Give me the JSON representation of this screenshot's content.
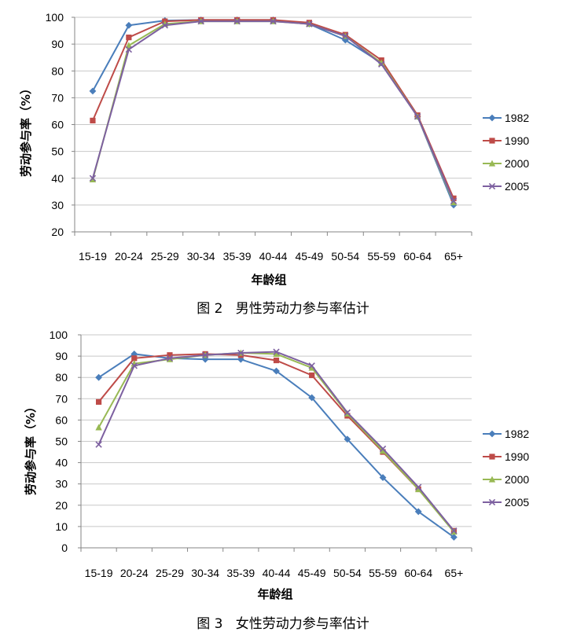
{
  "colors": {
    "1982": "#4a7ebb",
    "1990": "#be4b48",
    "2000": "#98b954",
    "2005": "#7d60a0",
    "grid": "#c8c8c8",
    "axis": "#868686"
  },
  "chart_data": [
    {
      "type": "line",
      "caption": "图 2   男性劳动力参与率估计",
      "xlabel": "年龄组",
      "ylabel": "劳动参与率（%）",
      "categories": [
        "15-19",
        "20-24",
        "25-29",
        "30-34",
        "35-39",
        "40-44",
        "45-49",
        "50-54",
        "55-59",
        "60-64",
        "65+"
      ],
      "ylim": [
        20,
        100
      ],
      "yticks": [
        20,
        30,
        40,
        50,
        60,
        70,
        80,
        90,
        100
      ],
      "legend": "right",
      "grid": true,
      "series": [
        {
          "name": "1982",
          "marker": "diamond",
          "values": [
            72.5,
            97,
            98.8,
            99,
            99,
            99,
            97.5,
            91.5,
            83,
            63,
            30
          ]
        },
        {
          "name": "1990",
          "marker": "square",
          "values": [
            61.5,
            92.5,
            98.5,
            99,
            99,
            99,
            98,
            93.5,
            84,
            63.5,
            32.5
          ]
        },
        {
          "name": "2000",
          "marker": "triangle",
          "values": [
            39.5,
            89.5,
            97.5,
            98.5,
            98.5,
            98.5,
            97.5,
            93,
            83,
            63,
            31
          ]
        },
        {
          "name": "2005",
          "marker": "x",
          "values": [
            40,
            88,
            97,
            98.5,
            98.5,
            98.5,
            97.5,
            93,
            82.5,
            63,
            31.5
          ]
        }
      ]
    },
    {
      "type": "line",
      "caption": "图 3   女性劳动力参与率估计",
      "xlabel": "年龄组",
      "ylabel": "劳动参与率（%）",
      "categories": [
        "15-19",
        "20-24",
        "25-29",
        "30-34",
        "35-39",
        "40-44",
        "45-49",
        "50-54",
        "55-59",
        "60-64",
        "65+"
      ],
      "ylim": [
        0,
        100
      ],
      "yticks": [
        0,
        10,
        20,
        30,
        40,
        50,
        60,
        70,
        80,
        90,
        100
      ],
      "legend": "right",
      "grid": true,
      "series": [
        {
          "name": "1982",
          "marker": "diamond",
          "values": [
            80,
            91,
            89,
            88.5,
            88.5,
            83,
            70.5,
            51,
            33,
            17,
            5
          ]
        },
        {
          "name": "1990",
          "marker": "square",
          "values": [
            68.5,
            89,
            90.5,
            91,
            90.5,
            88,
            81,
            62,
            45,
            27.5,
            8
          ]
        },
        {
          "name": "2000",
          "marker": "triangle",
          "values": [
            56.5,
            86.5,
            88.5,
            90.5,
            91.5,
            91,
            84.5,
            63,
            45.5,
            27.5,
            7.5
          ]
        },
        {
          "name": "2005",
          "marker": "x",
          "values": [
            48.5,
            85.5,
            89,
            90.5,
            91.5,
            92,
            85.5,
            63.5,
            46.5,
            28.5,
            8
          ]
        }
      ]
    }
  ]
}
